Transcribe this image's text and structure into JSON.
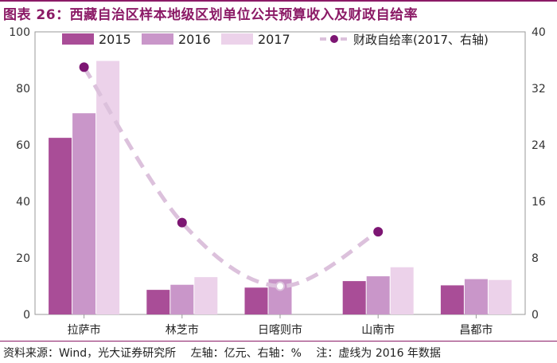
{
  "title": "图表 26：西藏自治区样本地级区划单位公共预算收入及财政自给率",
  "footer": {
    "source": "资料来源：Wind，光大证券研究所",
    "left_axis": "左轴：亿元、右轴：%",
    "note": "注：虚线为 2016 年数据"
  },
  "colors": {
    "title": "#8b1a66",
    "s2015": "#a94d97",
    "s2016": "#c996c9",
    "s2017": "#ecd2ea",
    "ratio": "#7d1673",
    "ratio_dashed": "#dcc1dc"
  },
  "chart_data": {
    "type": "bar",
    "categories": [
      "拉萨市",
      "林芝市",
      "日喀则市",
      "山南市",
      "昌都市"
    ],
    "series": [
      {
        "name": "2015",
        "values": [
          62.5,
          8.7,
          9.5,
          11.8,
          10.3
        ]
      },
      {
        "name": "2016",
        "values": [
          71.2,
          10.5,
          12.5,
          13.5,
          12.5
        ]
      },
      {
        "name": "2017",
        "values": [
          89.7,
          13.2,
          null,
          16.7,
          12.2
        ]
      }
    ],
    "line": {
      "name": "财政自给率(2017、右轴)",
      "values": [
        35,
        13,
        4,
        11.7,
        null
      ],
      "dashed_note": "虚线为 2016 年数据"
    },
    "y_left": {
      "min": 0,
      "max": 100,
      "ticks": [
        0,
        20,
        40,
        60,
        80,
        100
      ]
    },
    "y_right": {
      "min": 0,
      "max": 40,
      "ticks": [
        0,
        8,
        16,
        24,
        32,
        40
      ]
    },
    "legend": [
      "2015",
      "2016",
      "2017",
      "财政自给率(2017、右轴)"
    ],
    "legend_position": "top"
  }
}
